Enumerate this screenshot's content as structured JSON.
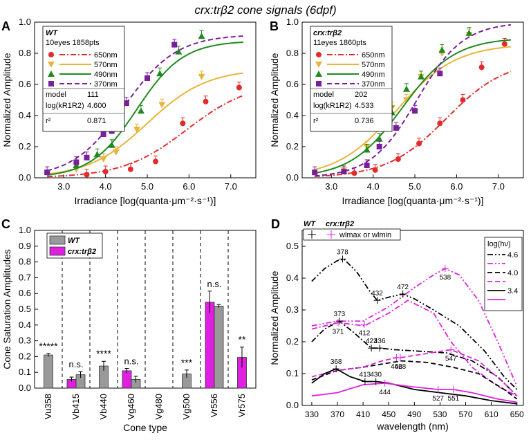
{
  "figure_title": "crx:trβ2 cone signals (6dpf)",
  "panel_letters": [
    "A",
    "B",
    "C",
    "D"
  ],
  "colors": {
    "red": "#e32b2b",
    "orange": "#e8b53c",
    "green": "#1f8a1f",
    "purple": "#7a1f9a",
    "magenta": "#e020e0",
    "gray": "#999999",
    "black": "#000000"
  },
  "chart_data": [
    {
      "type": "scatter",
      "panel": "A",
      "xlabel": "Irradiance [log(quanta·μm⁻²·s⁻¹)]",
      "ylabel": "Normalized Amplitude",
      "xlim": [
        2.3,
        7.6
      ],
      "ylim": [
        0,
        1.0
      ],
      "xticks": [
        "3.0",
        "4.0",
        "5.0",
        "6.0",
        "7.0"
      ],
      "yticks": [
        "0.0",
        "0.2",
        "0.4",
        "0.6",
        "0.8",
        "1.0"
      ],
      "legend": {
        "title": "WT",
        "subtitle": "10eyes 1858pts",
        "model_label": "model",
        "model_value": "111",
        "logk_label": "log(kR1R2)",
        "logk_value": "4.600",
        "r2_label": "r²",
        "r2_value": "0.871"
      },
      "series": [
        {
          "name": "650nm",
          "color": "#e32b2b",
          "marker": "circle",
          "dash": "dashdot",
          "x": [
            3.55,
            4.0,
            4.6,
            5.2,
            5.85,
            6.4,
            7.2
          ],
          "y": [
            0.02,
            0.04,
            0.055,
            0.105,
            0.35,
            0.49,
            0.58
          ],
          "fit": {
            "half": 5.95,
            "max": 0.62,
            "slope": 1.3
          }
        },
        {
          "name": "570nm",
          "color": "#e8b53c",
          "marker": "triangle-down",
          "dash": "solid",
          "x": [
            3.3,
            3.95,
            4.25,
            4.75,
            5.35,
            6.3
          ],
          "y": [
            0.055,
            0.12,
            0.165,
            0.31,
            0.47,
            0.65
          ],
          "fit": {
            "half": 5.0,
            "max": 0.7,
            "slope": 1.4
          }
        },
        {
          "name": "490nm",
          "color": "#1f8a1f",
          "marker": "triangle-up",
          "dash": "solid",
          "x": [
            3.3,
            3.8,
            4.15,
            4.85,
            5.3,
            5.75,
            6.3
          ],
          "y": [
            0.08,
            0.15,
            0.21,
            0.43,
            0.67,
            0.81,
            0.91
          ],
          "fit": {
            "half": 4.75,
            "max": 0.88,
            "slope": 1.8
          }
        },
        {
          "name": "370nm",
          "color": "#7a1f9a",
          "marker": "square",
          "dash": "dashed",
          "x": [
            2.6,
            3.3,
            3.55,
            3.95,
            4.15,
            4.5,
            5.0,
            5.65
          ],
          "y": [
            0.035,
            0.1,
            0.13,
            0.28,
            0.3,
            0.48,
            0.64,
            0.855
          ],
          "fit": {
            "half": 4.45,
            "max": 0.92,
            "slope": 1.6
          }
        }
      ]
    },
    {
      "type": "scatter",
      "panel": "B",
      "xlabel": "Irradiance [log(quanta·μm⁻²·s⁻¹)]",
      "ylabel": "Normalized Amplitude",
      "xlim": [
        2.3,
        7.6
      ],
      "ylim": [
        0,
        1.0
      ],
      "xticks": [
        "3.0",
        "4.0",
        "5.0",
        "6.0",
        "7.0"
      ],
      "yticks": [
        "0.0",
        "0.2",
        "0.4",
        "0.6",
        "0.8",
        "1.0"
      ],
      "legend": {
        "title": "crx:trβ2",
        "subtitle": "11eyes 1860pts",
        "model_label": "model",
        "model_value": "202",
        "logk_label": "log(kR1R2)",
        "logk_value": "4.533",
        "r2_label": "r²",
        "r2_value": "0.736"
      },
      "series": [
        {
          "name": "650nm",
          "color": "#e32b2b",
          "marker": "circle",
          "dash": "dashdot",
          "x": [
            3.55,
            4.05,
            4.6,
            5.1,
            5.6,
            6.15,
            6.6,
            7.15
          ],
          "y": [
            0.03,
            0.05,
            0.12,
            0.22,
            0.35,
            0.5,
            0.71,
            0.86
          ],
          "fit": {
            "half": 5.75,
            "max": 0.76,
            "slope": 1.4
          }
        },
        {
          "name": "570nm",
          "color": "#e8b53c",
          "marker": "triangle-down",
          "dash": "solid",
          "x": [
            3.3,
            3.85,
            4.15,
            4.45,
            4.8,
            5.15,
            5.65,
            6.3
          ],
          "y": [
            0.05,
            0.2,
            0.4,
            0.45,
            0.5,
            0.65,
            0.8,
            0.92
          ],
          "fit": {
            "half": 4.55,
            "max": 0.86,
            "slope": 1.4
          }
        },
        {
          "name": "490nm",
          "color": "#1f8a1f",
          "marker": "triangle-up",
          "dash": "solid",
          "x": [
            3.3,
            3.85,
            4.15,
            4.45,
            4.8,
            5.15,
            5.65,
            6.3
          ],
          "y": [
            0.04,
            0.18,
            0.25,
            0.42,
            0.57,
            0.65,
            0.82,
            0.93
          ],
          "fit": {
            "half": 4.7,
            "max": 0.9,
            "slope": 1.6
          }
        },
        {
          "name": "370nm",
          "color": "#7a1f9a",
          "marker": "square",
          "dash": "dashed",
          "x": [
            2.6,
            3.3,
            3.85,
            4.15,
            4.55,
            5.0,
            5.6
          ],
          "y": [
            0.035,
            0.04,
            0.08,
            0.2,
            0.32,
            0.43,
            0.67
          ],
          "fit": {
            "half": 5.05,
            "max": 1.0,
            "slope": 1.8
          }
        }
      ]
    },
    {
      "type": "bar",
      "panel": "C",
      "ylabel": "Cone Saturation Amplitudes",
      "xlabel": "Cone type",
      "ylim": [
        0,
        1.0
      ],
      "yticks": [
        "0.0",
        "0.1",
        "0.2",
        "0.3",
        "0.4",
        "0.5",
        "0.6",
        "0.7",
        "0.8",
        "0.9",
        "1.0"
      ],
      "categories": [
        "Vu358",
        "Vb415",
        "Vb440",
        "Vg460",
        "Vg480",
        "Vg500",
        "Vr556",
        "Vr575"
      ],
      "series": [
        {
          "name": "WT",
          "color": "#999999",
          "values": [
            0.21,
            0.085,
            0.14,
            0.055,
            null,
            0.09,
            0.52,
            null
          ],
          "errors": [
            0.01,
            0.02,
            0.03,
            0.02,
            null,
            0.025,
            0.01,
            null
          ]
        },
        {
          "name": "crx:trβ2",
          "color": "#e020e0",
          "values": [
            null,
            0.055,
            null,
            0.11,
            null,
            null,
            0.545,
            0.195
          ],
          "errors": [
            null,
            0.015,
            null,
            0.015,
            null,
            null,
            0.07,
            0.065
          ]
        }
      ],
      "significance": [
        "*****",
        "n.s.",
        "****",
        "n.s.",
        "",
        "***",
        "n.s.",
        "**"
      ]
    },
    {
      "type": "line",
      "panel": "D",
      "xlabel": "wavelength (nm)",
      "ylabel": "Normalized Amplitude",
      "xlim": [
        315,
        660
      ],
      "ylim": [
        0,
        0.55
      ],
      "xticks": [
        "330",
        "370",
        "410",
        "450",
        "490",
        "530",
        "570",
        "610",
        "650"
      ],
      "yticks": [
        "0.0",
        "0.1",
        "0.2",
        "0.3",
        "0.4",
        "0.5"
      ],
      "legend_top": {
        "wt": "WT",
        "tr": "crx:trβ2",
        "marker_label": "wlmax or wlmin"
      },
      "legend_right": {
        "title": "log(hν)",
        "entries": [
          "4.6",
          "4.0",
          "3.4"
        ]
      },
      "series": [
        {
          "name": "4.6",
          "group": "WT",
          "color": "#000000",
          "dash": "dashdotdot",
          "x": [
            330,
            350,
            370,
            380,
            400,
            420,
            432,
            450,
            472,
            490,
            520,
            560,
            600,
            630,
            650
          ],
          "y": [
            0.39,
            0.43,
            0.455,
            0.46,
            0.42,
            0.36,
            0.33,
            0.34,
            0.35,
            0.335,
            0.3,
            0.25,
            0.17,
            0.09,
            0.05
          ]
        },
        {
          "name": "4.6",
          "group": "crx:trβ2",
          "color": "#e020e0",
          "dash": "dashdotdot",
          "x": [
            330,
            370,
            410,
            450,
            490,
            520,
            538,
            560,
            590,
            620,
            650
          ],
          "y": [
            0.25,
            0.265,
            0.265,
            0.31,
            0.37,
            0.41,
            0.43,
            0.41,
            0.33,
            0.2,
            0.06
          ]
        },
        {
          "name": "4.0",
          "group": "WT",
          "color": "#000000",
          "dash": "dashdot",
          "x": [
            330,
            350,
            373,
            395,
            423,
            436,
            460,
            500,
            540,
            580,
            620,
            650
          ],
          "y": [
            0.2,
            0.24,
            0.265,
            0.23,
            0.18,
            0.18,
            0.175,
            0.17,
            0.165,
            0.14,
            0.09,
            0.03
          ]
        },
        {
          "name": "4.0",
          "group": "crx:trβ2",
          "color": "#e020e0",
          "dash": "dashdot",
          "x": [
            330,
            371,
            412,
            450,
            480,
            520,
            547,
            580,
            620,
            650
          ],
          "y": [
            0.24,
            0.26,
            0.25,
            0.29,
            0.33,
            0.29,
            0.2,
            0.12,
            0.06,
            0.03
          ]
        },
        {
          "name": "4.0",
          "group": "WT",
          "color": "#000000",
          "dash": "dashed",
          "x": [
            330,
            370,
            410,
            440,
            470,
            510,
            550,
            590,
            630,
            650
          ],
          "y": [
            0.08,
            0.11,
            0.12,
            0.13,
            0.14,
            0.135,
            0.12,
            0.1,
            0.05,
            0.02
          ]
        },
        {
          "name": "4.0",
          "group": "crx:trβ2",
          "color": "#e020e0",
          "dash": "dashed",
          "x": [
            330,
            370,
            410,
            440,
            462,
            468,
            500,
            547,
            590,
            630,
            650
          ],
          "y": [
            0.09,
            0.11,
            0.12,
            0.14,
            0.15,
            0.15,
            0.16,
            0.175,
            0.14,
            0.07,
            0.03
          ]
        },
        {
          "name": "3.4",
          "group": "WT",
          "color": "#000000",
          "dash": "solid",
          "x": [
            330,
            350,
            368,
            390,
            413,
            430,
            450,
            490,
            530,
            570,
            610,
            650
          ],
          "y": [
            0.07,
            0.1,
            0.115,
            0.09,
            0.075,
            0.075,
            0.07,
            0.05,
            0.04,
            0.03,
            0.015,
            0.005
          ]
        },
        {
          "name": "3.4",
          "group": "crx:trβ2",
          "color": "#e020e0",
          "dash": "solid",
          "x": [
            330,
            370,
            410,
            444,
            480,
            527,
            551,
            580,
            620,
            650
          ],
          "y": [
            0.03,
            0.04,
            0.065,
            0.07,
            0.06,
            0.05,
            0.05,
            0.04,
            0.02,
            0.01
          ]
        }
      ],
      "peak_labels": [
        {
          "text": "378",
          "x": 378,
          "y": 0.46,
          "color": "#000000"
        },
        {
          "text": "432",
          "x": 432,
          "y": 0.33,
          "color": "#000000"
        },
        {
          "text": "472",
          "x": 472,
          "y": 0.35,
          "color": "#000000"
        },
        {
          "text": "538",
          "x": 538,
          "y": 0.43,
          "color": "#e020e0"
        },
        {
          "text": "373",
          "x": 373,
          "y": 0.265,
          "color": "#000000"
        },
        {
          "text": "371",
          "x": 371,
          "y": 0.26,
          "color": "#e020e0"
        },
        {
          "text": "412",
          "x": 412,
          "y": 0.255,
          "color": "#e020e0"
        },
        {
          "text": "423",
          "x": 423,
          "y": 0.18,
          "color": "#000000"
        },
        {
          "text": "436",
          "x": 436,
          "y": 0.18,
          "color": "#000000"
        },
        {
          "text": "462",
          "x": 462,
          "y": 0.15,
          "color": "#e020e0"
        },
        {
          "text": "468",
          "x": 468,
          "y": 0.15,
          "color": "#e020e0"
        },
        {
          "text": "547",
          "x": 547,
          "y": 0.175,
          "color": "#e020e0"
        },
        {
          "text": "368",
          "x": 368,
          "y": 0.115,
          "color": "#000000"
        },
        {
          "text": "413",
          "x": 413,
          "y": 0.075,
          "color": "#000000"
        },
        {
          "text": "430",
          "x": 430,
          "y": 0.075,
          "color": "#000000"
        },
        {
          "text": "444",
          "x": 444,
          "y": 0.07,
          "color": "#e020e0"
        },
        {
          "text": "527",
          "x": 527,
          "y": 0.05,
          "color": "#e020e0"
        },
        {
          "text": "551",
          "x": 551,
          "y": 0.05,
          "color": "#e020e0"
        }
      ]
    }
  ]
}
